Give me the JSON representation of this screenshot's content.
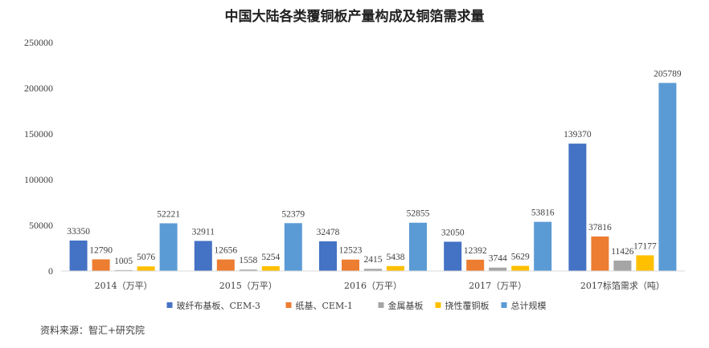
{
  "chart_data": {
    "type": "bar",
    "title": "中国大陆各类覆铜板产量构成及铜箔需求量",
    "categories": [
      "2014（万平）",
      "2015（万平）",
      "2016（万平）",
      "2017（万平）",
      "2017标箔需求（吨）"
    ],
    "series": [
      {
        "name": "玻纤布基板、CEM-3",
        "color": "#4472c4",
        "values": [
          33350,
          32911,
          32478,
          32050,
          139370
        ]
      },
      {
        "name": "纸基、CEM-1",
        "color": "#ed7d31",
        "values": [
          12790,
          12656,
          12523,
          12392,
          37816
        ]
      },
      {
        "name": "金属基板",
        "color": "#a5a5a5",
        "values": [
          1005,
          1558,
          2415,
          3744,
          11426
        ]
      },
      {
        "name": "挠性覆铜板",
        "color": "#ffc000",
        "values": [
          5076,
          5254,
          5438,
          5629,
          17177
        ]
      },
      {
        "name": "总计规模",
        "color": "#5b9bd5",
        "values": [
          52221,
          52379,
          52855,
          53816,
          205789
        ]
      }
    ],
    "ylim": [
      0,
      250000
    ],
    "yticks": [
      0,
      50000,
      100000,
      150000,
      200000,
      250000
    ],
    "grid": false,
    "legend_position": "bottom"
  },
  "source": "资料来源：智汇+研究院"
}
